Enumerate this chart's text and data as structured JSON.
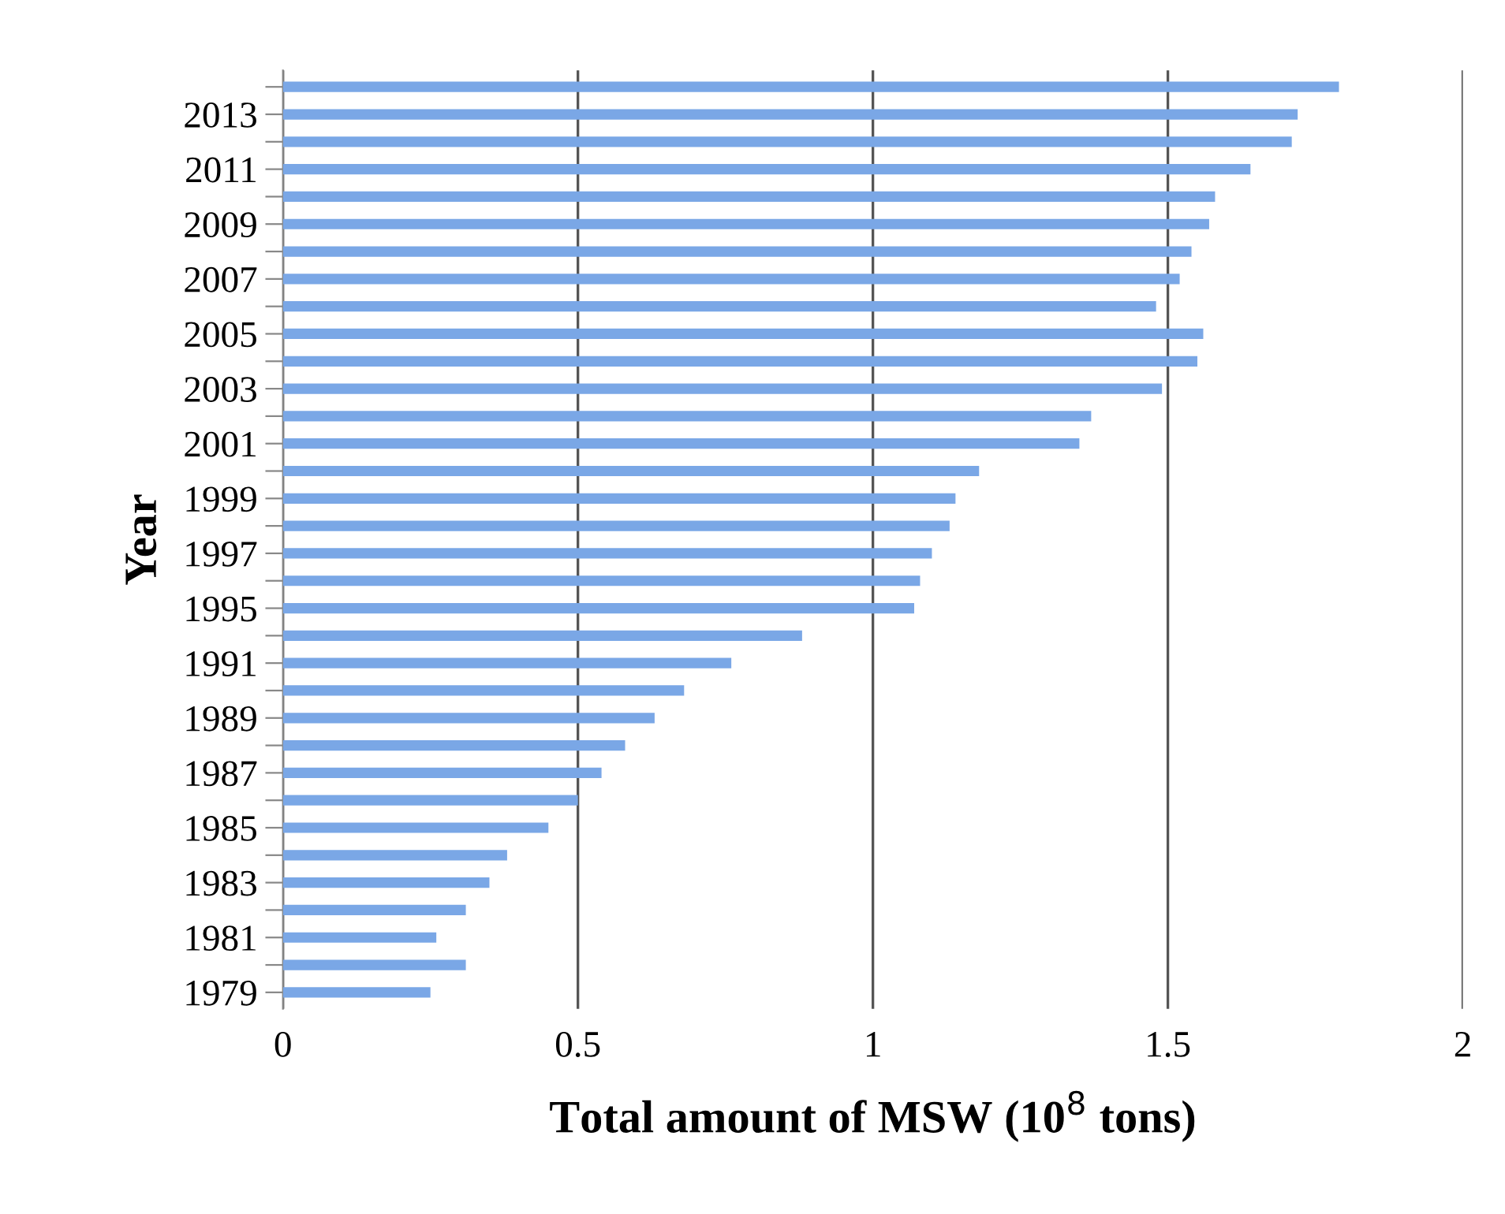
{
  "chart_data": {
    "type": "bar",
    "orientation": "horizontal",
    "xlabel": "Total amount of MSW (10$^{8}$ tons)",
    "ylabel": "Year",
    "categories": [
      null,
      "2013",
      null,
      "2011",
      null,
      "2009",
      null,
      "2007",
      null,
      "2005",
      null,
      "2003",
      null,
      "2001",
      null,
      "1999",
      null,
      "1997",
      null,
      "1995",
      null,
      "1991",
      null,
      "1989",
      null,
      "1987",
      null,
      "1985",
      null,
      "1983",
      null,
      "1981",
      null,
      "1979"
    ],
    "values": [
      1.79,
      1.72,
      1.71,
      1.64,
      1.58,
      1.57,
      1.54,
      1.52,
      1.48,
      1.56,
      1.55,
      1.49,
      1.37,
      1.35,
      1.18,
      1.14,
      1.13,
      1.1,
      1.08,
      1.07,
      0.88,
      0.76,
      0.68,
      0.63,
      0.58,
      0.54,
      0.5,
      0.45,
      0.38,
      0.35,
      0.31,
      0.26,
      0.31,
      0.25
    ],
    "color": "#7aa7e6",
    "xlim": [
      0,
      2
    ],
    "xticks": [
      0,
      0.5,
      1,
      1.5,
      2
    ],
    "grid": "x"
  }
}
